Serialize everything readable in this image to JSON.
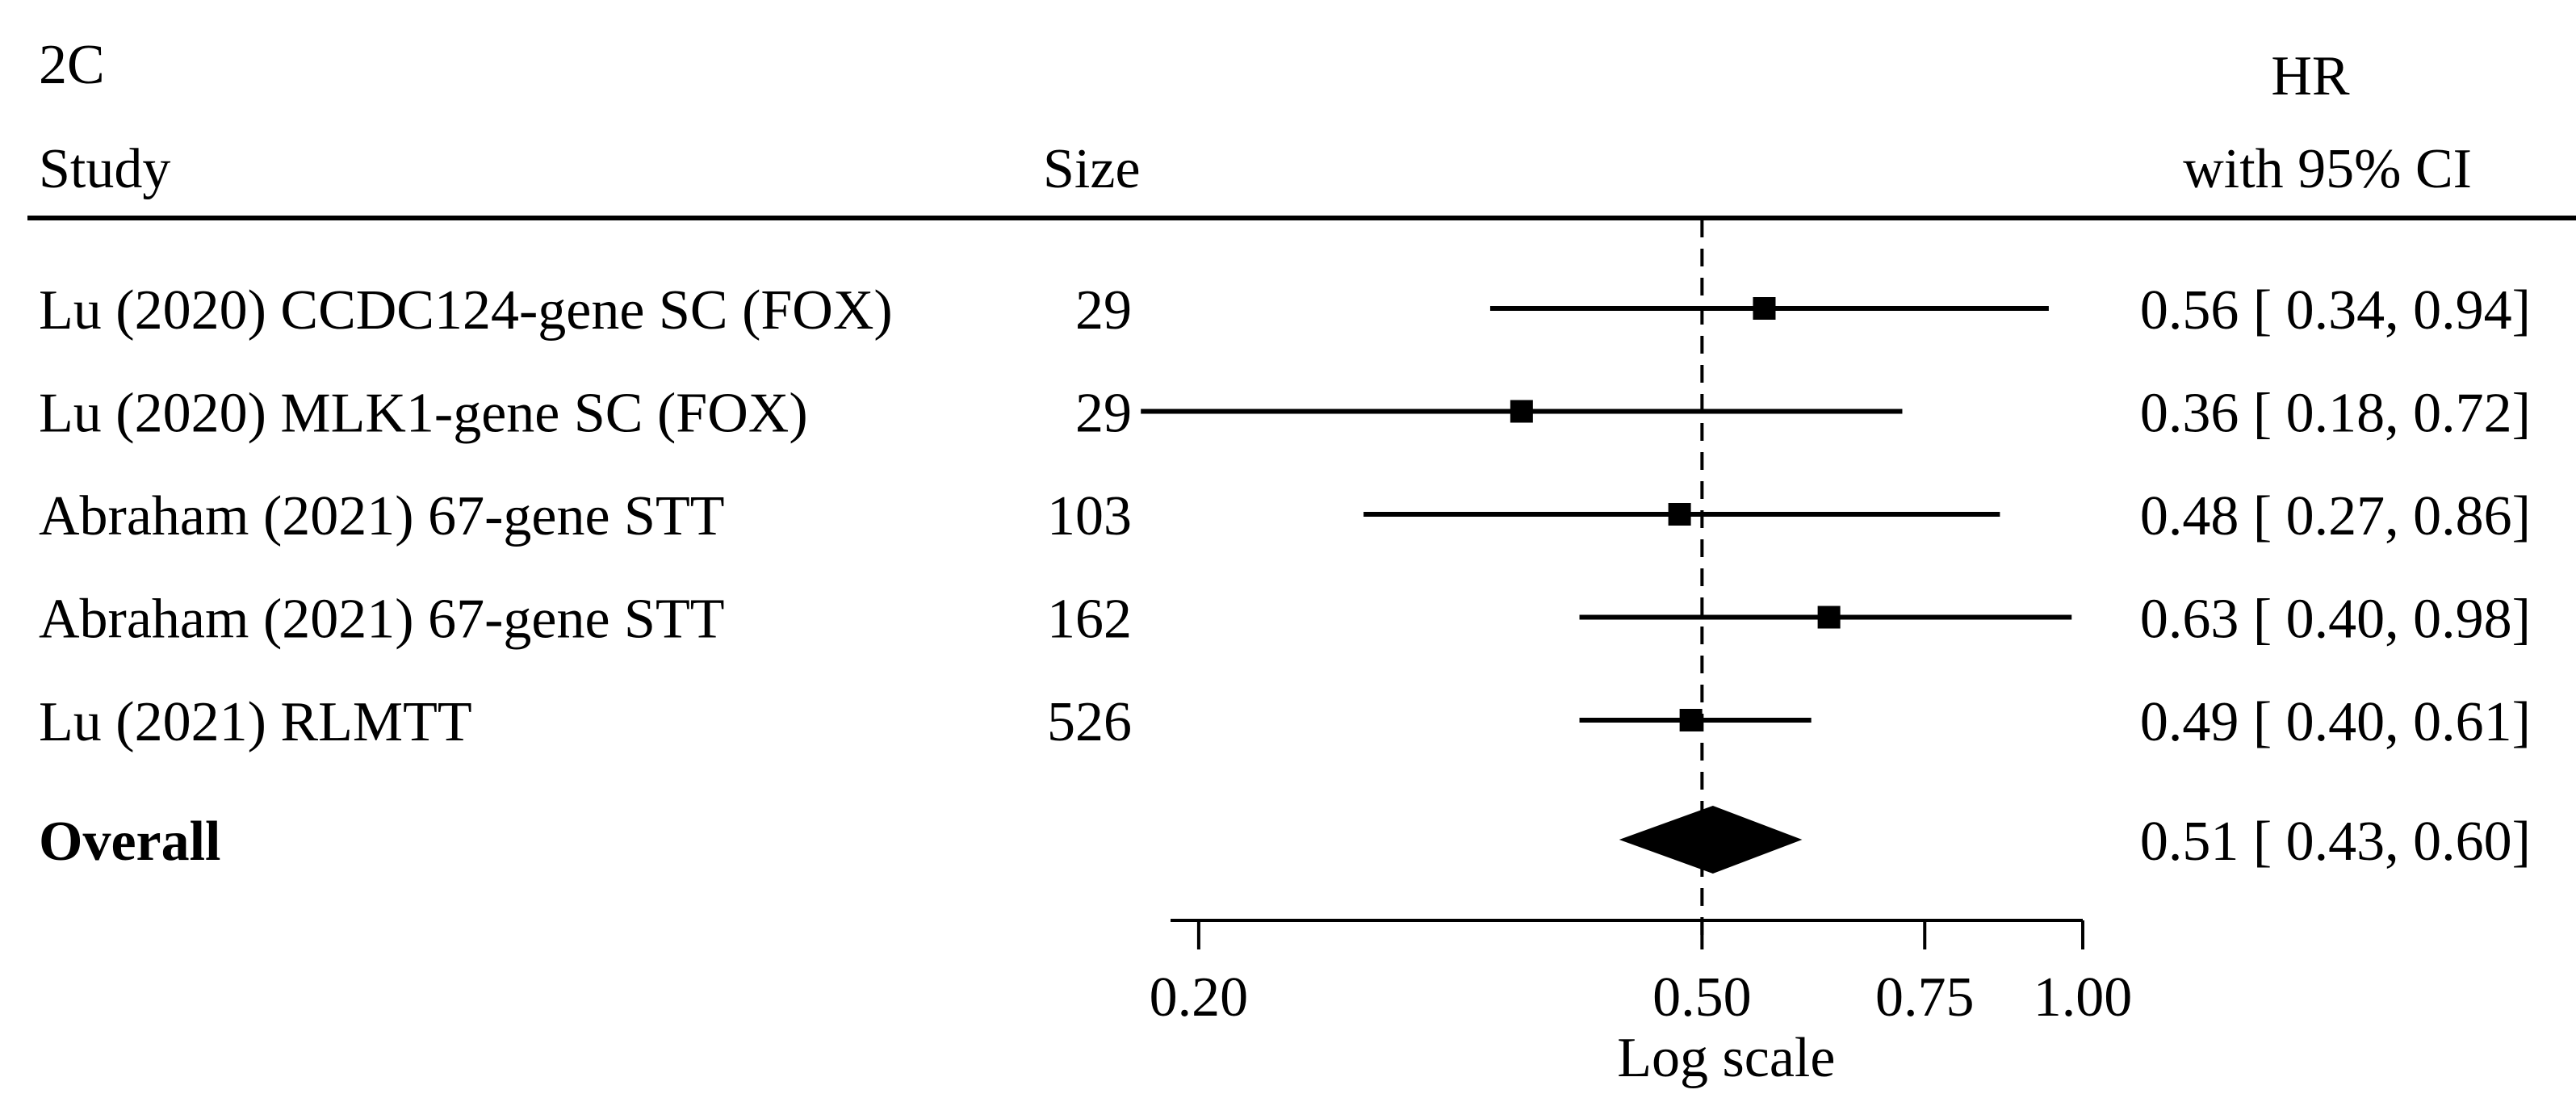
{
  "panel_label": "2C",
  "headers": {
    "study": "Study",
    "size": "Size",
    "hr_line1": "HR",
    "hr_line2": "with 95% CI"
  },
  "chart_data": {
    "type": "forest",
    "xscale": "log",
    "xlabel": "Log scale",
    "xlim": [
      0.19,
      1.0
    ],
    "xticks": [
      0.2,
      0.5,
      0.75,
      1.0
    ],
    "xtick_labels": [
      "0.20",
      "0.50",
      "0.75",
      "1.00"
    ],
    "reference_line": 0.5,
    "studies": [
      {
        "label": "Lu (2020) CCDC124-gene SC (FOX)",
        "size": "29",
        "hr": 0.56,
        "lower": 0.34,
        "upper": 0.94,
        "ci_text": "0.56 [ 0.34,  0.94]"
      },
      {
        "label": "Lu (2020) MLK1-gene SC (FOX)",
        "size": "29",
        "hr": 0.36,
        "lower": 0.18,
        "upper": 0.72,
        "ci_text": "0.36 [ 0.18,  0.72]"
      },
      {
        "label": "Abraham (2021) 67-gene STT",
        "size": "103",
        "hr": 0.48,
        "lower": 0.27,
        "upper": 0.86,
        "ci_text": "0.48 [ 0.27,  0.86]"
      },
      {
        "label": "Abraham (2021) 67-gene STT",
        "size": "162",
        "hr": 0.63,
        "lower": 0.4,
        "upper": 0.98,
        "ci_text": "0.63 [ 0.40,  0.98]"
      },
      {
        "label": "Lu (2021)  RLMTT",
        "size": "526",
        "hr": 0.49,
        "lower": 0.4,
        "upper": 0.61,
        "ci_text": "0.49 [ 0.40,  0.61]"
      }
    ],
    "overall": {
      "label": "Overall",
      "hr": 0.51,
      "lower": 0.43,
      "upper": 0.6,
      "ci_text": "0.51 [ 0.43,  0.60]"
    }
  }
}
